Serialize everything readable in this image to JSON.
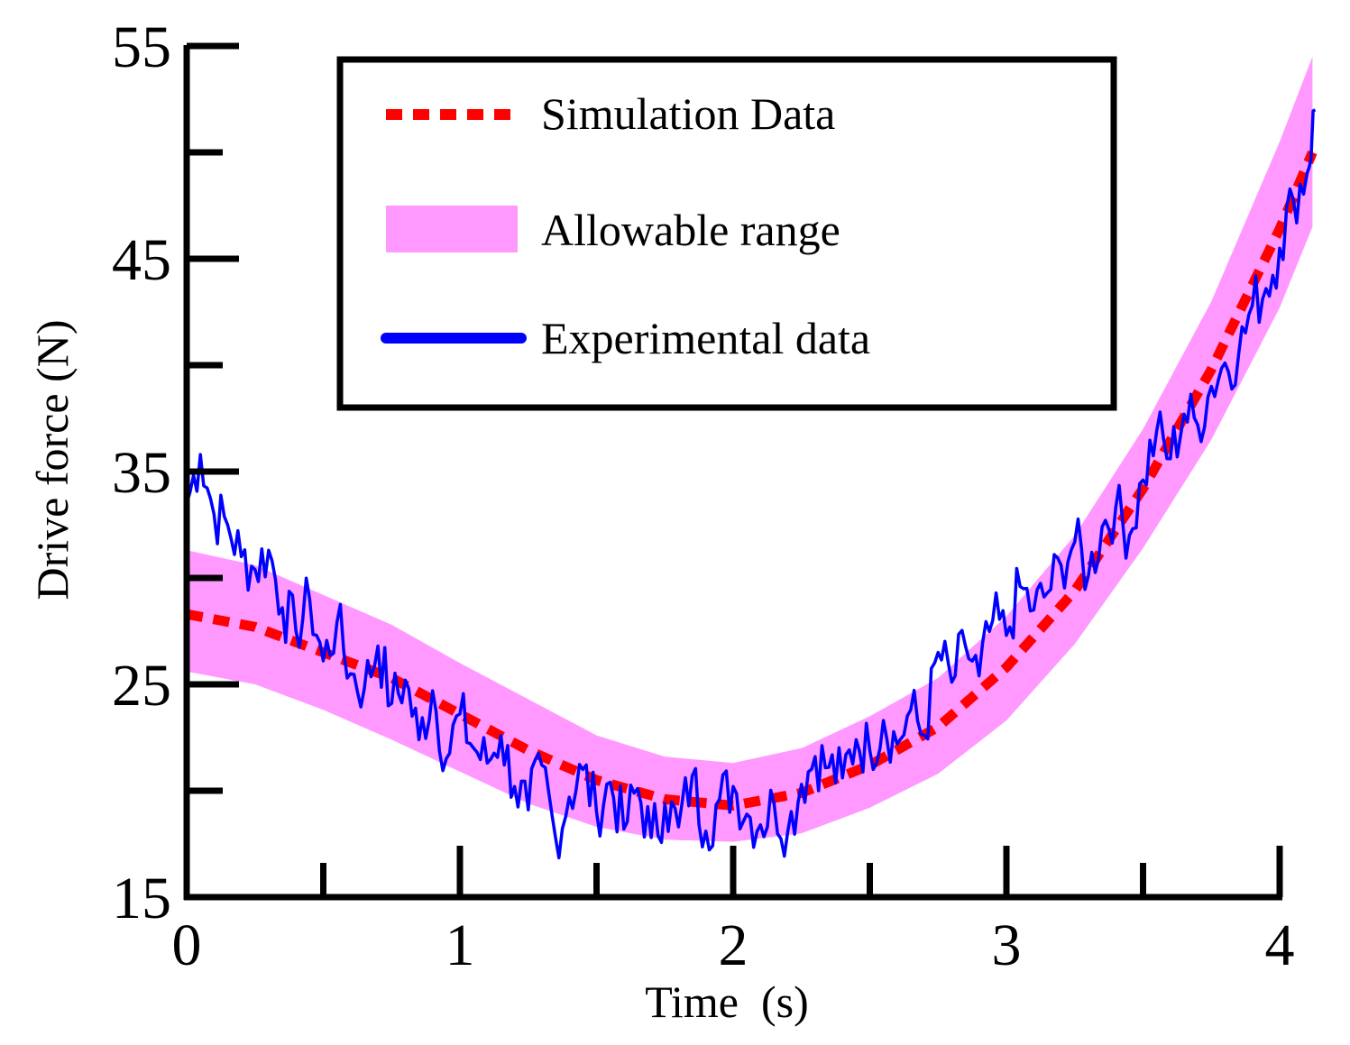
{
  "chart_data": {
    "type": "line",
    "title": "",
    "xlabel": "Time  (s)",
    "ylabel": "Drive force (N)",
    "xlim": [
      0,
      4.15
    ],
    "ylim": [
      15,
      55
    ],
    "x_ticks": [
      0,
      1,
      2,
      3,
      4
    ],
    "x_tick_labels": [
      "0",
      "1",
      "2",
      "3",
      "4"
    ],
    "x_minor_ticks": [
      0.5,
      1.5,
      2.5,
      3.5
    ],
    "y_ticks": [
      15,
      25,
      35,
      45,
      55
    ],
    "y_tick_labels": [
      "15",
      "25",
      "35",
      "45",
      "55"
    ],
    "y_minor_ticks": [
      20,
      30,
      40,
      50
    ],
    "grid": false,
    "legend_position": "top-center",
    "series": [
      {
        "name": "Simulation Data",
        "kind": "line",
        "style": "dashed",
        "color": "#ff0000",
        "x": [
          0,
          0.25,
          0.5,
          0.75,
          1.0,
          1.25,
          1.5,
          1.75,
          2.0,
          2.25,
          2.5,
          2.75,
          3.0,
          3.25,
          3.5,
          3.75,
          4.0,
          4.12
        ],
        "values": [
          28.3,
          27.7,
          26.5,
          25.3,
          23.6,
          21.9,
          20.5,
          19.6,
          19.3,
          19.9,
          21.2,
          23.0,
          25.8,
          29.4,
          34.2,
          39.8,
          46.4,
          50.0
        ]
      },
      {
        "name": "Allowable range",
        "kind": "band",
        "color": "#ff99ff",
        "x": [
          0,
          0.25,
          0.5,
          0.75,
          1.0,
          1.25,
          1.5,
          1.75,
          2.0,
          2.25,
          2.5,
          2.75,
          3.0,
          3.25,
          3.5,
          3.75,
          4.0,
          4.12
        ],
        "lower": [
          25.6,
          25.0,
          23.8,
          22.4,
          20.9,
          19.4,
          18.3,
          17.7,
          17.6,
          18.0,
          19.2,
          20.8,
          23.3,
          26.9,
          31.4,
          36.5,
          42.7,
          46.5
        ],
        "upper": [
          31.3,
          30.6,
          29.2,
          27.8,
          26.0,
          24.3,
          22.6,
          21.6,
          21.3,
          22.0,
          23.5,
          25.3,
          28.2,
          32.0,
          37.0,
          43.0,
          50.5,
          54.5
        ]
      },
      {
        "name": "Experimental data",
        "kind": "line",
        "style": "solid",
        "color": "#0000ff",
        "x": [
          0,
          0.05,
          0.1,
          0.15,
          0.2,
          0.25,
          0.3,
          0.35,
          0.4,
          0.45,
          0.5,
          0.55,
          0.6,
          0.65,
          0.7,
          0.75,
          0.8,
          0.85,
          0.9,
          0.95,
          1.0,
          1.05,
          1.1,
          1.15,
          1.2,
          1.25,
          1.3,
          1.35,
          1.4,
          1.45,
          1.5,
          1.55,
          1.6,
          1.65,
          1.7,
          1.75,
          1.8,
          1.85,
          1.9,
          1.95,
          2.0,
          2.05,
          2.1,
          2.15,
          2.2,
          2.25,
          2.3,
          2.35,
          2.4,
          2.45,
          2.5,
          2.55,
          2.6,
          2.65,
          2.7,
          2.75,
          2.8,
          2.85,
          2.9,
          2.95,
          3.0,
          3.05,
          3.1,
          3.15,
          3.2,
          3.25,
          3.3,
          3.35,
          3.4,
          3.45,
          3.5,
          3.55,
          3.6,
          3.65,
          3.7,
          3.75,
          3.8,
          3.85,
          3.9,
          3.95,
          4.0,
          4.05,
          4.1,
          4.13
        ],
        "values": [
          33.5,
          35.8,
          33.0,
          32.5,
          31.0,
          30.4,
          31.3,
          28.6,
          27.5,
          29.0,
          26.1,
          27.9,
          25.5,
          24.8,
          26.8,
          24.1,
          25.2,
          22.4,
          24.7,
          21.5,
          23.6,
          22.0,
          21.3,
          22.6,
          20.2,
          19.1,
          21.2,
          17.8,
          19.7,
          21.0,
          19.0,
          20.4,
          18.2,
          20.1,
          17.8,
          19.4,
          18.3,
          20.7,
          18.1,
          19.6,
          20.2,
          18.9,
          18.4,
          19.4,
          18.1,
          20.3,
          21.6,
          21.1,
          20.6,
          22.4,
          21.9,
          23.3,
          22.2,
          23.8,
          22.6,
          26.5,
          25.1,
          26.8,
          25.4,
          28.0,
          27.3,
          29.6,
          28.5,
          29.3,
          30.6,
          31.7,
          30.1,
          32.4,
          33.3,
          32.0,
          34.6,
          36.9,
          35.6,
          37.7,
          37.2,
          39.0,
          40.1,
          40.5,
          42.8,
          43.6,
          45.5,
          47.8,
          49.0,
          52.0
        ]
      }
    ]
  }
}
